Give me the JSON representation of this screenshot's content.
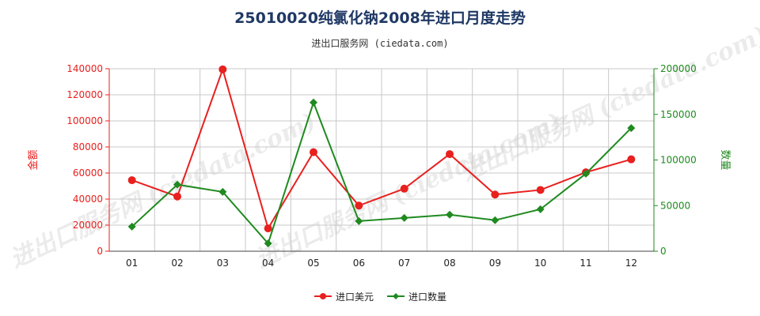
{
  "header": {
    "title": "25010020纯氯化钠2008年进口月度走势",
    "subtitle": "进出口服务网 (ciedata.com)"
  },
  "watermark": "进出口服务网 (ciedata.com)",
  "colors": {
    "amount": "#e8201e",
    "quantity": "#1f8a1f",
    "grid": "#c8c8c8"
  },
  "chart_data": {
    "type": "line",
    "categories": [
      "01",
      "02",
      "03",
      "04",
      "05",
      "06",
      "07",
      "08",
      "09",
      "10",
      "11",
      "12"
    ],
    "series": [
      {
        "name": "进口美元",
        "axis": "left",
        "color": "#e8201e",
        "marker": "circle",
        "values": [
          54500,
          42000,
          139500,
          17500,
          76000,
          35000,
          48000,
          74500,
          43500,
          47000,
          60500,
          70500
        ]
      },
      {
        "name": "进口数量",
        "axis": "right",
        "color": "#1f8a1f",
        "marker": "diamond",
        "values": [
          27000,
          73000,
          65000,
          8500,
          163000,
          33000,
          36500,
          40000,
          34000,
          46000,
          85000,
          135000
        ]
      }
    ],
    "ylabel_left": "金额",
    "ylabel_right": "数量",
    "ylim_left": [
      0,
      140000
    ],
    "yticks_left": [
      0,
      20000,
      40000,
      60000,
      80000,
      100000,
      120000,
      140000
    ],
    "ylim_right": [
      0,
      200000
    ],
    "yticks_right": [
      0,
      50000,
      100000,
      150000,
      200000
    ],
    "grid": true,
    "legend_position": "bottom-center"
  }
}
